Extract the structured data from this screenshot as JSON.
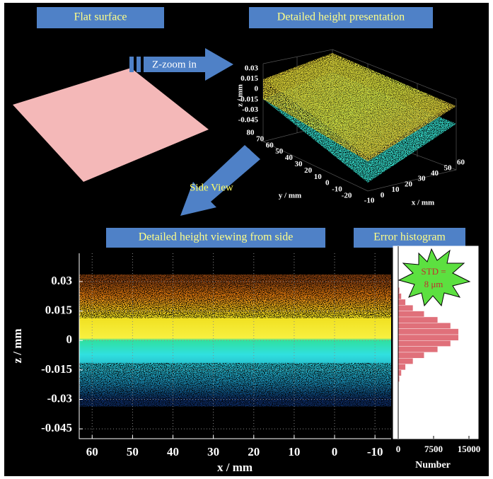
{
  "banners": [
    "Flat surface",
    "Detailed height presentation",
    "Detailed height viewing from side",
    "Error histogram"
  ],
  "arrows": {
    "zoom": "Z-zoom in",
    "side": "Side View"
  },
  "surface3d": {
    "zlabel": "z / mm",
    "zticks": [
      0.03,
      0.015,
      0,
      -0.015,
      -0.03,
      -0.045
    ],
    "ylabel": "y / mm",
    "yticks": [
      80,
      70,
      60,
      50,
      40,
      30,
      20,
      10,
      0,
      -10,
      -20
    ],
    "xlabel": "x / mm",
    "xticks": [
      -10,
      0,
      10,
      20,
      30,
      40,
      50,
      60
    ]
  },
  "chart_data": [
    {
      "type": "scatter",
      "xlabel": "x / mm",
      "ylabel": "z / mm",
      "xlim": [
        63.2,
        -14
      ],
      "ylim": [
        -0.05,
        0.0444
      ],
      "xticks": [
        60,
        50,
        40,
        30,
        20,
        10,
        0,
        -10
      ],
      "yticks": [
        0.03,
        0.015,
        0,
        -0.015,
        -0.03,
        -0.045
      ],
      "grid": true
    },
    {
      "type": "histogram",
      "orientation": "horizontal",
      "xlabel": "Number",
      "color": "#e0707a",
      "xlim": [
        -750,
        15750
      ],
      "ylim": [
        -0.05,
        0.0444
      ],
      "xticks": [
        0,
        7500,
        15000
      ],
      "bins": [
        -0.03,
        -0.027,
        -0.024,
        -0.021,
        -0.018,
        -0.015,
        -0.012,
        -0.009,
        -0.006,
        -0.003,
        0,
        0.003,
        0.006,
        0.009,
        0.012,
        0.015,
        0.018,
        0.021,
        0.024,
        0.027,
        0.03
      ],
      "counts": [
        6,
        23,
        80,
        248,
        666,
        1545,
        3138,
        5495,
        8373,
        11101,
        12775,
        12775,
        11101,
        8373,
        5495,
        3138,
        1545,
        666,
        248,
        80
      ],
      "annotation": [
        "STD =",
        "8 μm"
      ]
    }
  ]
}
